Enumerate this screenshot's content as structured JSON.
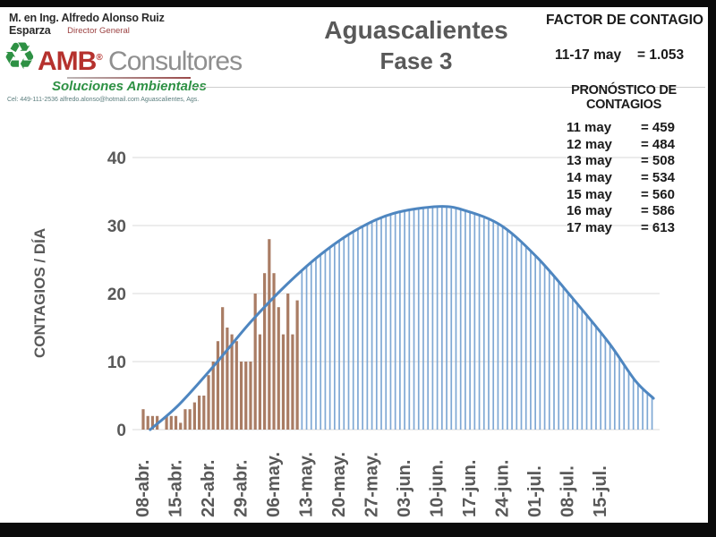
{
  "header": {
    "author_name": "M. en Ing. Alfredo Alonso Ruiz Esparza",
    "author_title": "Director General",
    "recycle_icon": "♻",
    "brand": "AMB",
    "brand_mark": "®",
    "brand_suffix": " Consultores",
    "brand_tagline": "Soluciones Ambientales",
    "contact_line": "Cel: 449-111-2536    alfredo.alonso@hotmail.com    Aguascalientes, Ags."
  },
  "title": {
    "line1": "Aguascalientes",
    "line2": "Fase 3"
  },
  "factor_panel": {
    "heading": "FACTOR DE CONTAGIO",
    "range_label": "11-17 may",
    "range_value": "= 1.053"
  },
  "forecast_panel": {
    "heading": "PRONÓSTICO DE CONTAGIOS",
    "rows": [
      {
        "date": "11 may",
        "value": "= 459"
      },
      {
        "date": "12 may",
        "value": "= 484"
      },
      {
        "date": "13 may",
        "value": "= 508"
      },
      {
        "date": "14 may",
        "value": "= 534"
      },
      {
        "date": "15 may",
        "value": "= 560"
      },
      {
        "date": "16 may",
        "value": "= 586"
      },
      {
        "date": "17 may",
        "value": "= 613"
      }
    ]
  },
  "chart_data": {
    "type": "bar+line combo",
    "title": "Aguascalientes Fase 3",
    "xlabel": "",
    "ylabel": "CONTAGIOS / DÍA",
    "ylim": [
      0,
      40
    ],
    "y_ticks": [
      0,
      10,
      20,
      30,
      40
    ],
    "grid": true,
    "x_tick_labels": [
      "08-abr.",
      "15-abr.",
      "22-abr.",
      "29-abr.",
      "06-may.",
      "13-may.",
      "20-may.",
      "27-may.",
      "03-jun.",
      "10-jun.",
      "17-jun.",
      "24-jun.",
      "01-jul.",
      "08-jul.",
      "15-jul."
    ],
    "series": [
      {
        "name": "contagios-diarios-observados",
        "type": "bar",
        "color": "#A97C64",
        "start_label": "08-abr.",
        "values": [
          3,
          2,
          2,
          2,
          0,
          2,
          2,
          2,
          1,
          3,
          3,
          4,
          5,
          5,
          8,
          10,
          13,
          18,
          15,
          14,
          13,
          10,
          10,
          10,
          20,
          14,
          23,
          28,
          23,
          18,
          14,
          20,
          14,
          19
        ]
      },
      {
        "name": "pronostico-curva-fase3",
        "type": "line",
        "color": "#4E86C0",
        "hatch_color": "#7FA8D4",
        "peak_value_approx": 33,
        "points_day_value": [
          [
            1.5,
            0
          ],
          [
            7.7,
            3.7
          ],
          [
            15.3,
            9.5
          ],
          [
            23,
            15.8
          ],
          [
            30.7,
            21.3
          ],
          [
            38.3,
            25.9
          ],
          [
            46,
            29.5
          ],
          [
            53.7,
            31.8
          ],
          [
            63.3,
            32.8
          ],
          [
            69,
            32.2
          ],
          [
            76.7,
            30
          ],
          [
            84.4,
            25.3
          ],
          [
            92,
            19.3
          ],
          [
            99.7,
            12.8
          ],
          [
            105.4,
            7.2
          ],
          [
            109.3,
            4.6
          ]
        ],
        "hatch_day_range": [
          34,
          109
        ]
      }
    ],
    "colors": {
      "grid": "#D9D9D9",
      "axis_text": "#595959"
    }
  }
}
